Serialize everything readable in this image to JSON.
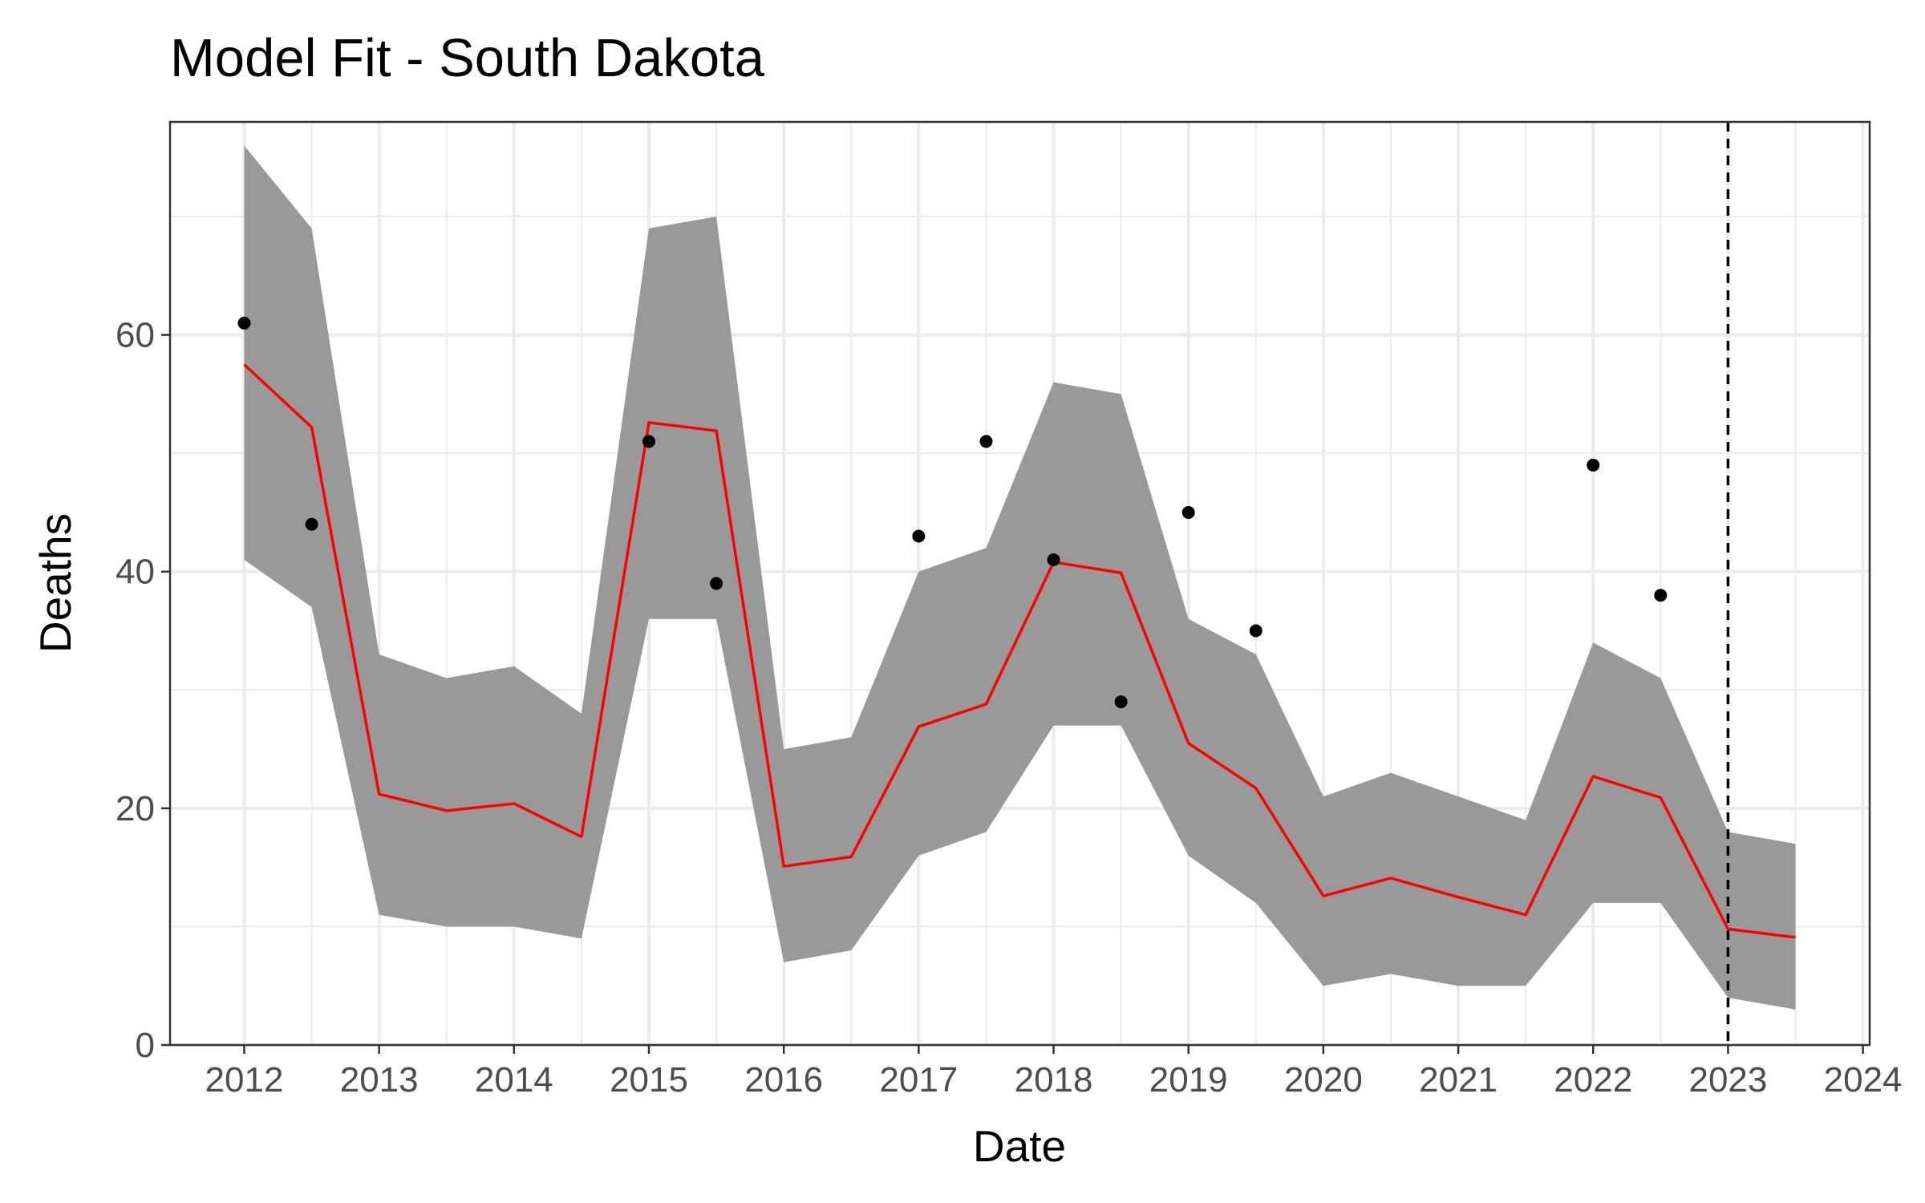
{
  "chart_data": {
    "type": "line",
    "title": "Model Fit - South Dakota",
    "xlabel": "Date",
    "ylabel": "Deaths",
    "xlim": [
      2011.45,
      2024.05
    ],
    "ylim": [
      0,
      78
    ],
    "x_ticks": [
      2012,
      2013,
      2014,
      2015,
      2016,
      2017,
      2018,
      2019,
      2020,
      2021,
      2022,
      2023,
      2024
    ],
    "y_ticks": [
      0,
      20,
      40,
      60
    ],
    "grid": true,
    "vline": {
      "x": 2023,
      "style": "dashed",
      "color": "#000000"
    },
    "colors": {
      "fit_line": "#ff0000",
      "ribbon": "#999999",
      "points": "#000000"
    },
    "ribbon": {
      "x": [
        2012,
        2012.5,
        2013,
        2013.5,
        2014,
        2014.5,
        2015,
        2015.5,
        2016,
        2016.5,
        2017,
        2017.5,
        2018,
        2018.5,
        2019,
        2019.5,
        2020,
        2020.5,
        2021,
        2021.5,
        2022,
        2022.5,
        2023,
        2023.5
      ],
      "lower": [
        41,
        37,
        11,
        10,
        10,
        9,
        36,
        36,
        7,
        8,
        16,
        18,
        27,
        27,
        16,
        12,
        5,
        6,
        5,
        5,
        12,
        12,
        4,
        3
      ],
      "upper": [
        76,
        69,
        33,
        31,
        32,
        28,
        69,
        70,
        25,
        26,
        40,
        42,
        56,
        55,
        36,
        33,
        21,
        23,
        21,
        19,
        34,
        31,
        18,
        17
      ]
    },
    "series": [
      {
        "type": "line",
        "x": [
          2012,
          2012.5,
          2013,
          2013.5,
          2014,
          2014.5,
          2015,
          2015.5,
          2016,
          2016.5,
          2017,
          2017.5,
          2018,
          2018.5,
          2019,
          2019.5,
          2020,
          2020.5,
          2021,
          2021.5,
          2022,
          2022.5,
          2023,
          2023.5
        ],
        "values": [
          57.5,
          52.2,
          21.2,
          19.8,
          20.4,
          17.6,
          52.6,
          51.9,
          15.1,
          15.9,
          26.9,
          28.8,
          40.8,
          39.9,
          25.5,
          21.7,
          12.6,
          14.1,
          12.5,
          11.0,
          22.7,
          20.9,
          9.8,
          9.1
        ]
      },
      {
        "type": "scatter",
        "x": [
          2012,
          2012.5,
          2015,
          2015.5,
          2017,
          2017.5,
          2018,
          2018.5,
          2019,
          2019.5,
          2022,
          2022.5
        ],
        "values": [
          61,
          44,
          51,
          39,
          43,
          51,
          41,
          29,
          45,
          35,
          49,
          38
        ]
      }
    ]
  }
}
